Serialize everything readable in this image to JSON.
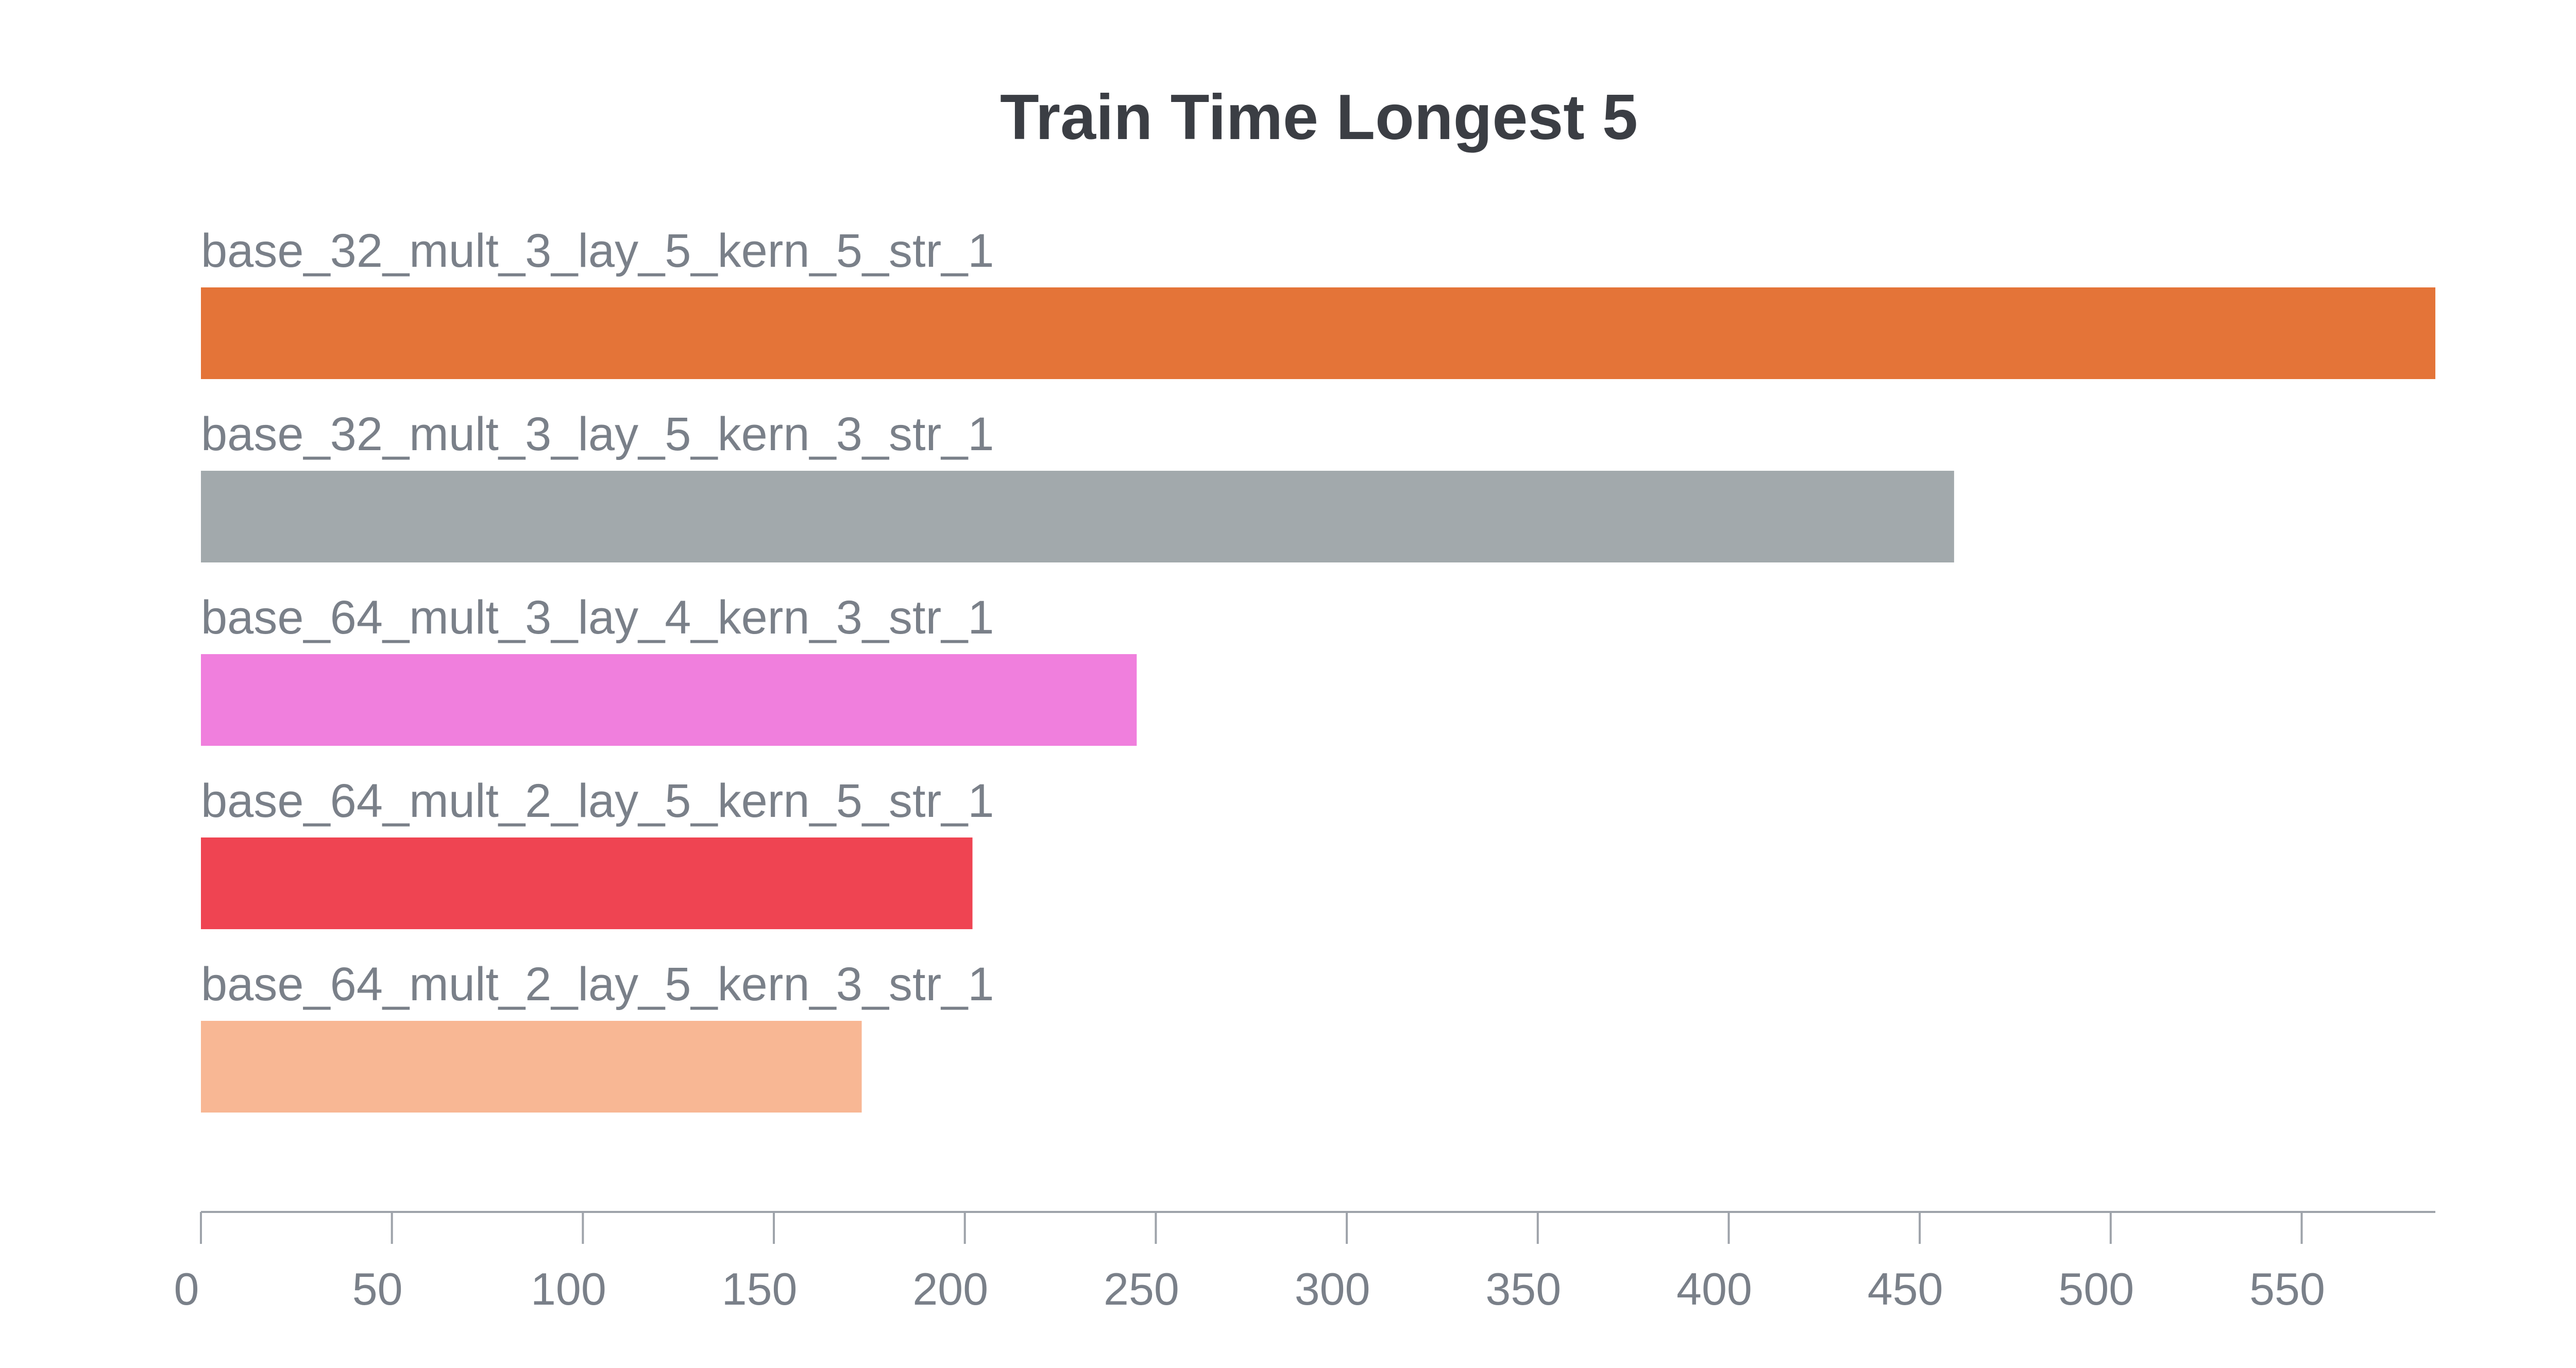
{
  "chart_data": {
    "type": "bar",
    "orientation": "horizontal",
    "title": "Train Time Longest 5",
    "xlabel": "",
    "ylabel": "",
    "xlim": [
      0,
      585
    ],
    "x_ticks": [
      0,
      50,
      100,
      150,
      200,
      250,
      300,
      350,
      400,
      450,
      500,
      550
    ],
    "grid": false,
    "legend": "none",
    "categories": [
      "base_32_mult_3_lay_5_kern_5_str_1",
      "base_32_mult_3_lay_5_kern_3_str_1",
      "base_64_mult_3_lay_4_kern_3_str_1",
      "base_64_mult_2_lay_5_kern_5_str_1",
      "base_64_mult_2_lay_5_kern_3_str_1"
    ],
    "values": [
      585,
      459,
      245,
      202,
      173
    ],
    "colors": [
      "#E47438",
      "#A2A9AC",
      "#F07FDD",
      "#EF4452",
      "#F8B794"
    ]
  }
}
